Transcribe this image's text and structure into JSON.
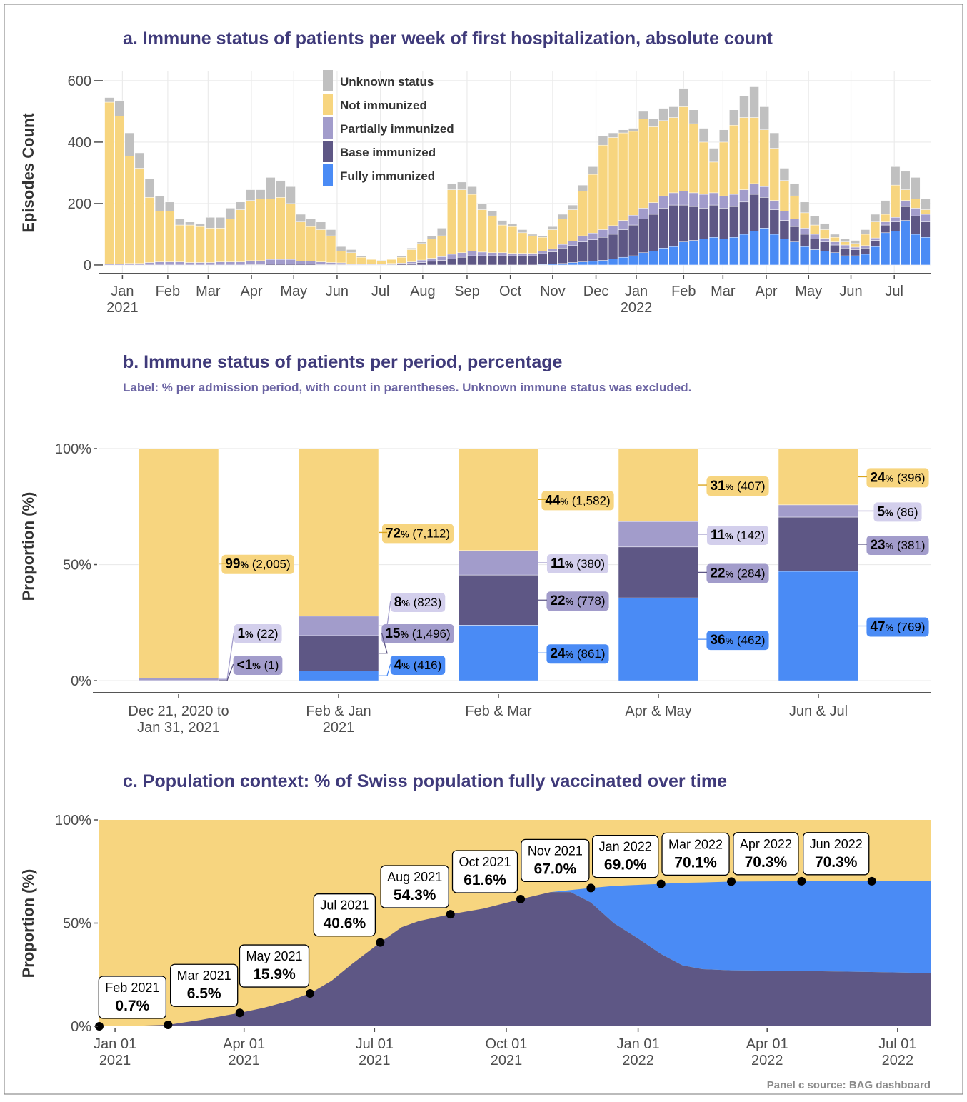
{
  "chart_data": [
    {
      "type": "bar",
      "stacked": true,
      "title": "a. Immune status of patients per week of first hospitalization, absolute count",
      "y_label": "Episodes Count",
      "categories": [
        null,
        null,
        null,
        null,
        null,
        null,
        null,
        null,
        null,
        null,
        null,
        null,
        null,
        null,
        null,
        null,
        null,
        null,
        null,
        null,
        null,
        null,
        null,
        null,
        null,
        null,
        null,
        null,
        null,
        null,
        null,
        null,
        null,
        null,
        null,
        null,
        null,
        null,
        null,
        null,
        null,
        null,
        null,
        null,
        null,
        null,
        null,
        null,
        null,
        null,
        null,
        null,
        null,
        null,
        null,
        null,
        null,
        null,
        null,
        null,
        null,
        null,
        null,
        null,
        null,
        null,
        null,
        null,
        null,
        null,
        null,
        null,
        null,
        null,
        null,
        null,
        null,
        null,
        null,
        null,
        null,
        null
      ],
      "series": [
        {
          "name": "Fully immunized",
          "color": "#4a8bf5",
          "values": [
            0,
            0,
            0,
            0,
            0,
            0,
            0,
            0,
            0,
            0,
            0,
            0,
            0,
            0,
            0,
            0,
            0,
            0,
            0,
            0,
            0,
            0,
            0,
            0,
            0,
            0,
            0,
            0,
            0,
            0,
            0,
            0,
            0,
            0,
            0,
            0,
            0,
            0,
            0,
            0,
            0,
            0,
            0,
            2,
            3,
            5,
            8,
            10,
            12,
            15,
            20,
            25,
            30,
            40,
            45,
            55,
            60,
            75,
            80,
            85,
            90,
            85,
            90,
            100,
            110,
            120,
            100,
            85,
            75,
            60,
            50,
            45,
            40,
            30,
            30,
            35,
            60,
            105,
            110,
            145,
            100,
            90
          ]
        },
        {
          "name": "Base immunized",
          "color": "#5e5785",
          "values": [
            0,
            0,
            0,
            0,
            0,
            0,
            0,
            0,
            0,
            0,
            0,
            0,
            0,
            0,
            2,
            2,
            3,
            3,
            3,
            3,
            3,
            2,
            2,
            2,
            1,
            1,
            1,
            1,
            2,
            3,
            5,
            8,
            12,
            15,
            20,
            25,
            30,
            30,
            30,
            30,
            30,
            30,
            30,
            35,
            40,
            50,
            55,
            65,
            70,
            75,
            80,
            90,
            100,
            110,
            120,
            130,
            135,
            120,
            110,
            100,
            105,
            100,
            100,
            105,
            120,
            100,
            80,
            60,
            50,
            40,
            35,
            30,
            25,
            25,
            20,
            20,
            20,
            25,
            30,
            45,
            60,
            50
          ]
        },
        {
          "name": "Partially immunized",
          "color": "#a29ccb",
          "values": [
            3,
            3,
            5,
            5,
            8,
            10,
            10,
            10,
            8,
            8,
            8,
            10,
            10,
            10,
            12,
            12,
            15,
            15,
            15,
            10,
            10,
            8,
            6,
            5,
            3,
            2,
            2,
            2,
            3,
            3,
            5,
            8,
            10,
            12,
            15,
            15,
            15,
            12,
            10,
            10,
            8,
            8,
            8,
            8,
            10,
            12,
            15,
            20,
            22,
            25,
            28,
            30,
            32,
            35,
            38,
            40,
            40,
            45,
            45,
            45,
            40,
            40,
            40,
            40,
            35,
            35,
            30,
            30,
            25,
            20,
            15,
            12,
            10,
            10,
            8,
            8,
            8,
            10,
            15,
            20,
            25,
            25
          ]
        },
        {
          "name": "Not immunized",
          "color": "#f7d57f",
          "values": [
            527,
            482,
            350,
            310,
            212,
            165,
            165,
            120,
            122,
            117,
            112,
            110,
            140,
            170,
            196,
            201,
            197,
            202,
            182,
            127,
            112,
            105,
            87,
            38,
            36,
            22,
            15,
            10,
            13,
            19,
            40,
            54,
            63,
            68,
            210,
            205,
            185,
            138,
            120,
            90,
            87,
            67,
            57,
            45,
            62,
            83,
            102,
            145,
            191,
            275,
            287,
            285,
            273,
            290,
            247,
            245,
            245,
            275,
            225,
            170,
            100,
            175,
            225,
            235,
            215,
            185,
            170,
            100,
            75,
            50,
            30,
            28,
            15,
            10,
            12,
            37,
            52,
            25,
            105,
            35,
            30,
            15
          ]
        },
        {
          "name": "Unknown status",
          "color": "#c0c0c0",
          "values": [
            15,
            50,
            75,
            50,
            60,
            50,
            30,
            20,
            10,
            10,
            35,
            35,
            35,
            25,
            35,
            30,
            70,
            55,
            55,
            25,
            25,
            25,
            20,
            15,
            10,
            5,
            2,
            2,
            2,
            5,
            5,
            5,
            10,
            25,
            20,
            25,
            25,
            20,
            15,
            15,
            10,
            10,
            5,
            5,
            10,
            15,
            15,
            20,
            25,
            30,
            15,
            10,
            10,
            25,
            25,
            40,
            35,
            60,
            45,
            45,
            45,
            40,
            50,
            70,
            100,
            75,
            50,
            40,
            40,
            35,
            30,
            20,
            10,
            10,
            10,
            15,
            25,
            45,
            60,
            60,
            70,
            35
          ]
        }
      ],
      "xlim": [
        -0.5,
        81.5
      ],
      "xticks": [
        {
          "value": 1.3,
          "label": "Jan\n2021"
        },
        {
          "value": 5.8,
          "label": "Feb"
        },
        {
          "value": 9.8,
          "label": "Mar"
        },
        {
          "value": 14.1,
          "label": "Apr"
        },
        {
          "value": 18.3,
          "label": "May"
        },
        {
          "value": 22.6,
          "label": "Jun"
        },
        {
          "value": 26.9,
          "label": "Jul"
        },
        {
          "value": 31.1,
          "label": "Aug"
        },
        {
          "value": 35.5,
          "label": "Sep"
        },
        {
          "value": 39.8,
          "label": "Oct"
        },
        {
          "value": 44.0,
          "label": "Nov"
        },
        {
          "value": 48.3,
          "label": "Dec"
        },
        {
          "value": 52.3,
          "label": "Jan\n2022"
        },
        {
          "value": 57.0,
          "label": "Feb"
        },
        {
          "value": 60.9,
          "label": "Mar"
        },
        {
          "value": 65.2,
          "label": "Apr"
        },
        {
          "value": 69.4,
          "label": "May"
        },
        {
          "value": 73.6,
          "label": "Jun"
        },
        {
          "value": 77.9,
          "label": "Jul"
        }
      ],
      "ylim": [
        -28,
        630
      ],
      "yticks": [
        0,
        200,
        400,
        600
      ],
      "grid": true,
      "legend": "top"
    },
    {
      "type": "bar",
      "stacked": true,
      "title": "b. Immune status of patients per period, percentage",
      "subtitle": "Label: % per admission period, with count in parentheses. Unknown immune status was excluded.",
      "y_label": "Proportion (%)",
      "categories": [
        "Dec 21, 2020 to\nJan 31, 2021",
        "Feb & Jan\n2021",
        "Feb & Mar",
        "Apr & May",
        "Jun & Jul"
      ],
      "series": [
        {
          "color": "#4a8bf5",
          "label_color": "#4a8bf5",
          "values": [
            null,
            4.22,
            23.91,
            35.68,
            47.12
          ],
          "value_labels": [
            null,
            "4% (416)",
            "24% (861)",
            "36% (462)",
            "47% (769)"
          ]
        },
        {
          "color": "#5e5785",
          "label_color": "#a29ccb",
          "values": [
            0.05,
            15.19,
            21.61,
            21.93,
            23.35
          ],
          "value_labels": [
            "<1% (1)",
            "15% (1,496)",
            "22% (778)",
            "22% (284)",
            "23% (381)"
          ]
        },
        {
          "color": "#a29ccb",
          "label_color": "#d3cfec",
          "values": [
            1.08,
            8.36,
            10.55,
            10.97,
            5.27
          ],
          "value_labels": [
            "1% (22)",
            "8% (823)",
            "11% (380)",
            "11% (142)",
            "5% (86)"
          ]
        },
        {
          "color": "#f7d57f",
          "label_color": "#f7d57f",
          "values": [
            98.87,
            72.22,
            43.93,
            31.43,
            24.26
          ],
          "value_labels": [
            "99% (2,005)",
            "72% (7,112)",
            "44% (1,582)",
            "31% (407)",
            "24% (396)"
          ]
        }
      ],
      "ylim": [
        -5.2,
        100
      ],
      "yticks": [
        {
          "value": 0,
          "label": "0%"
        },
        {
          "value": 50,
          "label": "50%"
        },
        {
          "value": 100,
          "label": "100%"
        }
      ],
      "grid": true
    },
    {
      "type": "area",
      "stacked": true,
      "title": "c. Population context: % of Swiss population fully vaccinated over time",
      "y_label": "Proportion (%)",
      "background": "#f7d57f",
      "x": [
        "2020-12-21",
        "2021-01-15",
        "2021-02-07",
        "2021-03-01",
        "2021-03-29",
        "2021-04-15",
        "2021-05-01",
        "2021-05-17",
        "2021-06-01",
        "2021-06-15",
        "2021-07-05",
        "2021-07-20",
        "2021-08-01",
        "2021-08-23",
        "2021-09-15",
        "2021-10-11",
        "2021-11-01",
        "2021-11-15",
        "2021-11-29",
        "2021-12-15",
        "2022-01-01",
        "2022-01-17",
        "2022-02-01",
        "2022-02-15",
        "2022-03-07",
        "2022-04-25",
        "2022-06-13",
        "2022-07-24"
      ],
      "series": [
        {
          "color": "#5e5785",
          "values": [
            0,
            0.2,
            0.7,
            3,
            6.5,
            9,
            12,
            15.9,
            22,
            30,
            40.6,
            48,
            51,
            54.3,
            57,
            61.6,
            65,
            65,
            60,
            50,
            42.5,
            35,
            29.5,
            27.7,
            27.1,
            26.8,
            26.3,
            25.8
          ]
        },
        {
          "color": "#4a8bf5",
          "values": [
            0,
            0,
            0,
            0,
            0,
            0,
            0,
            0,
            0,
            0,
            0,
            0,
            0,
            0,
            0,
            0,
            0,
            1,
            7,
            18,
            26,
            34,
            40,
            42,
            43,
            43.5,
            44,
            44.5
          ]
        }
      ],
      "points": {
        "x": [
          "2020-12-21",
          "2021-02-07",
          "2021-03-29",
          "2021-05-17",
          "2021-07-05",
          "2021-08-23",
          "2021-10-11",
          "2021-11-29",
          "2022-01-17",
          "2022-03-07",
          "2022-04-25",
          "2022-06-13"
        ],
        "values": [
          0,
          0.7,
          6.5,
          15.9,
          40.6,
          54.3,
          61.6,
          67.0,
          69.0,
          70.1,
          70.3,
          70.3
        ],
        "labels": [
          null,
          "Feb 2021",
          "Mar 2021",
          "May 2021",
          "Jul 2021",
          "Aug 2021",
          "Oct 2021",
          "Nov 2021",
          "Jan 2022",
          "Mar 2022",
          "Apr 2022",
          "Jun 2022"
        ],
        "value_labels": [
          null,
          "0.7%",
          "6.5%",
          "15.9%",
          "40.6%",
          "54.3%",
          "61.6%",
          "67.0%",
          "69.0%",
          "70.1%",
          "70.3%",
          "70.3%"
        ]
      },
      "xlim": [
        "2020-12-21",
        "2022-07-24"
      ],
      "xticks": [
        {
          "value": "2021-01-01",
          "label": "Jan 01\n2021"
        },
        {
          "value": "2021-04-01",
          "label": "Apr 01\n2021"
        },
        {
          "value": "2021-07-01",
          "label": "Jul 01\n2021"
        },
        {
          "value": "2021-10-01",
          "label": "Oct 01\n2021"
        },
        {
          "value": "2022-01-01",
          "label": "Jan 01\n2022"
        },
        {
          "value": "2022-04-01",
          "label": "Apr 01\n2022"
        },
        {
          "value": "2022-07-01",
          "label": "Jul 01\n2022"
        }
      ],
      "ylim": [
        0,
        100
      ],
      "yticks": [
        {
          "value": 0,
          "label": "0%"
        },
        {
          "value": 50,
          "label": "50%"
        },
        {
          "value": 100,
          "label": "100%"
        }
      ],
      "grid": false,
      "note": "Panel c source: BAG dashboard"
    }
  ]
}
